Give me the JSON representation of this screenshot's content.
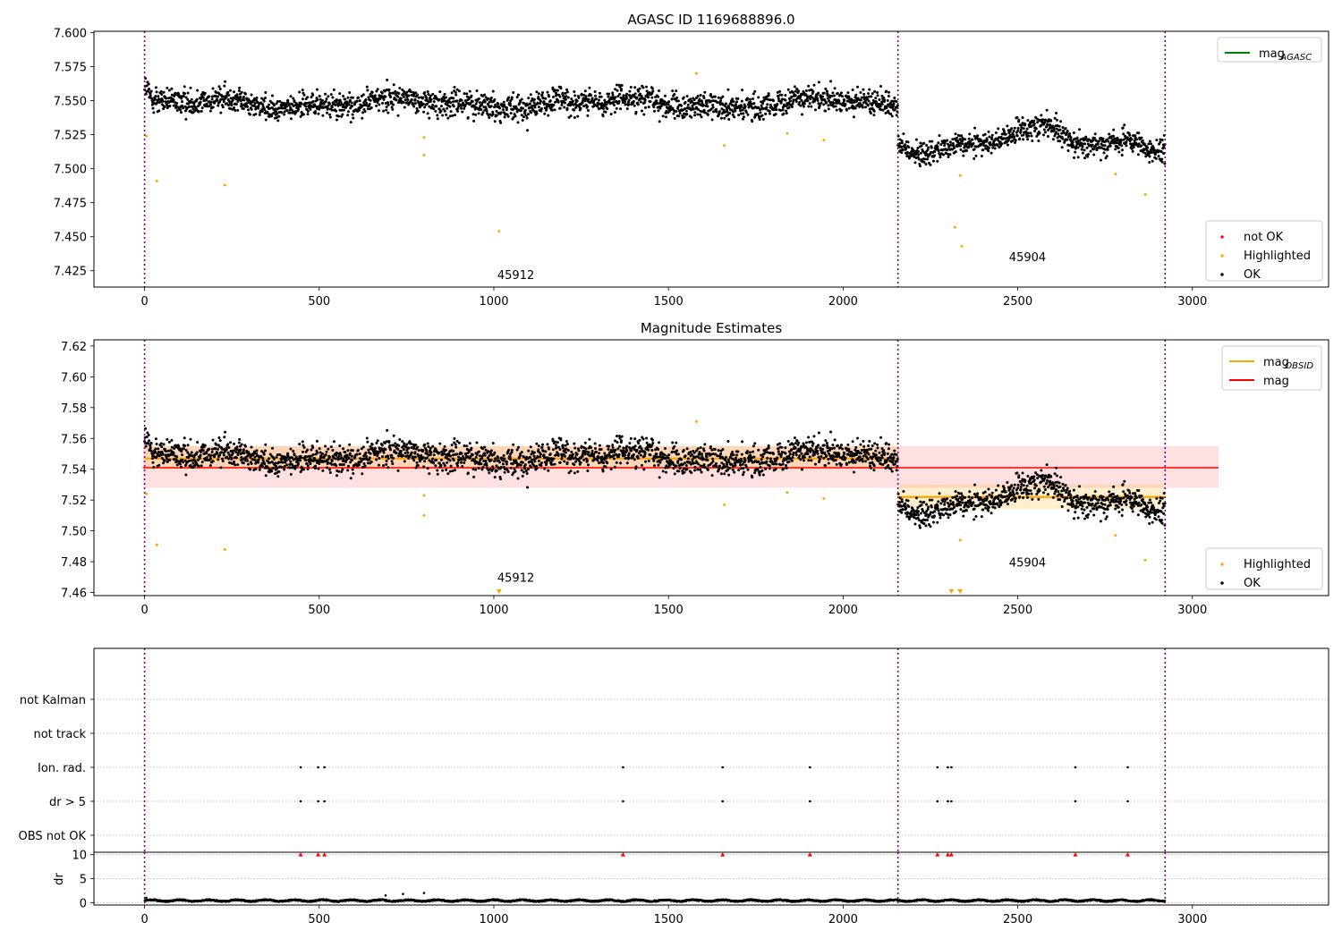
{
  "chart_data": [
    {
      "type": "scatter",
      "title": "AGASC ID 1169688896.0",
      "xlim": [
        -145,
        3390
      ],
      "ylim": [
        7.413,
        7.601
      ],
      "xticks": [
        0,
        500,
        1000,
        1500,
        2000,
        2500,
        3000
      ],
      "yticks": [
        7.425,
        7.45,
        7.475,
        7.5,
        7.525,
        7.55,
        7.575,
        7.6
      ],
      "ytick_labels": [
        "7.425",
        "7.450",
        "7.475",
        "7.500",
        "7.525",
        "7.550",
        "7.575",
        "7.600"
      ],
      "grid": false,
      "obsid_boundaries": [
        0,
        2157,
        2922
      ],
      "obsid_labels": [
        {
          "text": "45912",
          "x": 1010,
          "y": 7.419
        },
        {
          "text": "45904",
          "x": 2475,
          "y": 7.432
        }
      ],
      "segments": [
        {
          "x_start": 0,
          "x_end": 2157,
          "level": 7.548,
          "scatter": 0.0065,
          "wave": 0.004,
          "dip": 0
        },
        {
          "x_start": 2157,
          "x_end": 2922,
          "level": 7.522,
          "scatter": 0.006,
          "wave": 0.009,
          "dip": 0.006
        }
      ],
      "series": [
        {
          "name": "OK",
          "color": "#000000",
          "n_points": 2900
        },
        {
          "name": "Highlighted",
          "color": "#ffa500",
          "points": [
            [
              5,
              7.524
            ],
            [
              35,
              7.491
            ],
            [
              230,
              7.488
            ],
            [
              800,
              7.523
            ],
            [
              800,
              7.51
            ],
            [
              1015,
              7.454
            ],
            [
              1580,
              7.57
            ],
            [
              1660,
              7.517
            ],
            [
              1840,
              7.526
            ],
            [
              1945,
              7.521
            ],
            [
              2320,
              7.457
            ],
            [
              2335,
              7.495
            ],
            [
              2340,
              7.443
            ],
            [
              2780,
              7.496
            ],
            [
              2865,
              7.481
            ]
          ]
        },
        {
          "name": "not OK",
          "color": "#ff0000",
          "points": []
        }
      ],
      "legends": [
        {
          "placement": "top-right",
          "entries": [
            {
              "label": "mag",
              "subscript": "AGASC",
              "color": "#008000",
              "kind": "line"
            }
          ]
        },
        {
          "placement": "bottom-right",
          "entries": [
            {
              "label": "not OK",
              "color": "#ff0000",
              "kind": "dot"
            },
            {
              "label": "Highlighted",
              "color": "#ffa500",
              "kind": "dot"
            },
            {
              "label": "OK",
              "color": "#000000",
              "kind": "dot"
            }
          ]
        }
      ]
    },
    {
      "type": "scatter",
      "title": "Magnitude Estimates",
      "xlim": [
        -145,
        3390
      ],
      "ylim": [
        7.458,
        7.624
      ],
      "xticks": [
        0,
        500,
        1000,
        1500,
        2000,
        2500,
        3000
      ],
      "yticks": [
        7.46,
        7.48,
        7.5,
        7.52,
        7.54,
        7.56,
        7.58,
        7.6,
        7.62
      ],
      "ytick_labels": [
        "7.46",
        "7.48",
        "7.50",
        "7.52",
        "7.54",
        "7.56",
        "7.58",
        "7.60",
        "7.62"
      ],
      "grid": false,
      "obsid_boundaries": [
        0,
        2157,
        2922
      ],
      "obsid_labels": [
        {
          "text": "45912",
          "x": 1010,
          "y": 7.467
        },
        {
          "text": "45904",
          "x": 2475,
          "y": 7.477
        }
      ],
      "segments": [
        {
          "x_start": 0,
          "x_end": 2157,
          "level": 7.548,
          "scatter": 0.0065,
          "wave": 0.004,
          "dip": 0
        },
        {
          "x_start": 2157,
          "x_end": 2922,
          "level": 7.522,
          "scatter": 0.006,
          "wave": 0.009,
          "dip": 0.006
        }
      ],
      "mag": {
        "value": 7.541,
        "band": [
          7.528,
          7.555
        ],
        "x_range": [
          -5,
          3075
        ],
        "color": "#ff0000"
      },
      "mag_obsid": [
        {
          "x_range": [
            0,
            2157
          ],
          "value": 7.547,
          "band": [
            7.54,
            7.555
          ]
        },
        {
          "x_range": [
            2157,
            2922
          ],
          "value": 7.522,
          "band": [
            7.514,
            7.53
          ]
        }
      ],
      "series": [
        {
          "name": "OK",
          "color": "#000000",
          "n_points": 2900
        },
        {
          "name": "Highlighted",
          "color": "#ffa500",
          "points": [
            [
              5,
              7.524
            ],
            [
              35,
              7.491
            ],
            [
              230,
              7.488
            ],
            [
              800,
              7.523
            ],
            [
              800,
              7.51
            ],
            [
              1580,
              7.571
            ],
            [
              1660,
              7.517
            ],
            [
              1840,
              7.525
            ],
            [
              1945,
              7.521
            ],
            [
              2335,
              7.494
            ],
            [
              2780,
              7.497
            ],
            [
              2865,
              7.481
            ]
          ]
        },
        {
          "name": "Highlighted (out of range)",
          "color": "#ffa500",
          "marker": "down-triangle",
          "x": [
            1015,
            2310,
            2335
          ]
        }
      ],
      "legends": [
        {
          "placement": "top-right",
          "entries": [
            {
              "label": "mag",
              "subscript": "OBSID",
              "color": "#ffa500",
              "kind": "line"
            },
            {
              "label": "mag",
              "color": "#ff0000",
              "kind": "line"
            }
          ]
        },
        {
          "placement": "bottom-right",
          "entries": [
            {
              "label": "Highlighted",
              "color": "#ffa500",
              "kind": "dot"
            },
            {
              "label": "OK",
              "color": "#000000",
              "kind": "dot"
            }
          ]
        }
      ]
    },
    {
      "type": "scatter",
      "title": "",
      "xlim": [
        -145,
        3390
      ],
      "ylim": [
        0.5,
        6.5
      ],
      "categories": [
        "OBS not OK",
        "dr > 5",
        "Ion. rad.",
        "not track",
        "not Kalman"
      ],
      "grid": true,
      "obsid_boundaries": [
        0,
        2157,
        2922
      ],
      "flag_times": [
        447,
        497,
        515,
        1370,
        1655,
        1905,
        2270,
        2300,
        2310,
        2665,
        2815
      ],
      "flagged_rows": [
        "dr > 5",
        "Ion. rad."
      ]
    },
    {
      "type": "scatter",
      "title": "",
      "ylabel": "dr",
      "xlim": [
        -145,
        3390
      ],
      "ylim": [
        -0.5,
        10.5
      ],
      "xticks": [
        0,
        500,
        1000,
        1500,
        2000,
        2500,
        3000
      ],
      "yticks": [
        0,
        5,
        10
      ],
      "ytick_labels": [
        "0",
        "5",
        "10"
      ],
      "grid": true,
      "obsid_boundaries": [
        0,
        2157,
        2922
      ],
      "dr_outliers": [
        [
          5,
          1.0
        ],
        [
          690,
          1.5
        ],
        [
          740,
          1.8
        ],
        [
          800,
          2.0
        ]
      ],
      "dr_clipped_x": [
        447,
        497,
        515,
        1370,
        1655,
        1905,
        2270,
        2300,
        2310,
        2665,
        2815
      ],
      "dr_clipped_value": 10
    }
  ]
}
